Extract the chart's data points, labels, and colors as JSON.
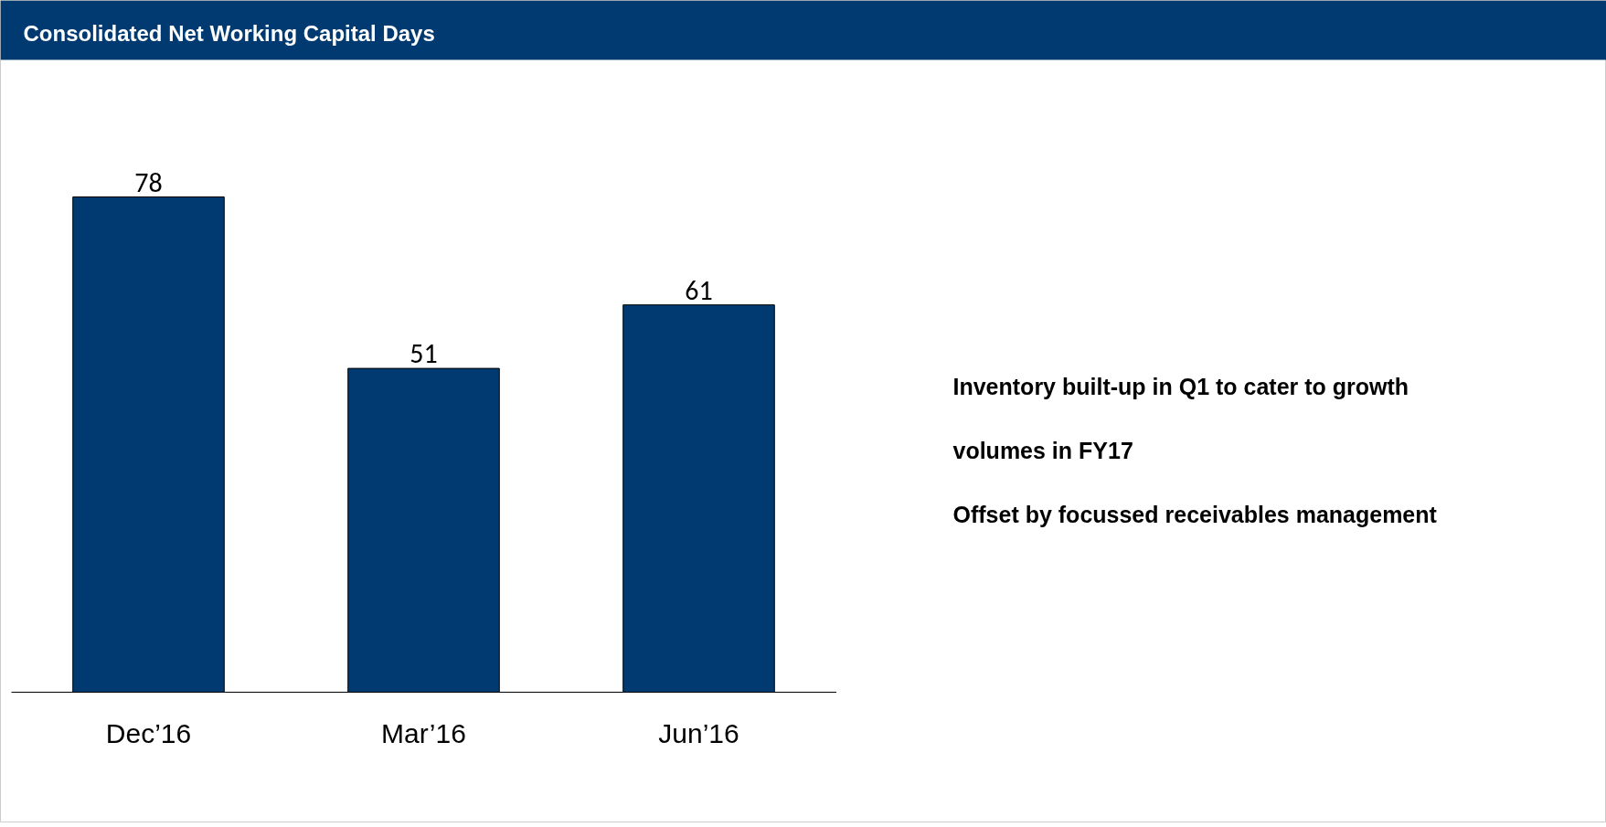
{
  "chart_data": {
    "type": "bar",
    "title": "Consolidated Net Working Capital Days",
    "categories": [
      "Dec’16",
      "Mar’16",
      "Jun’16"
    ],
    "values": [
      78,
      51,
      61
    ],
    "color": "#003a70",
    "data_labels": true,
    "annotations": [
      "Inventory built-up in Q1 to cater to growth volumes in FY17",
      "Offset by focussed receivables management"
    ]
  }
}
